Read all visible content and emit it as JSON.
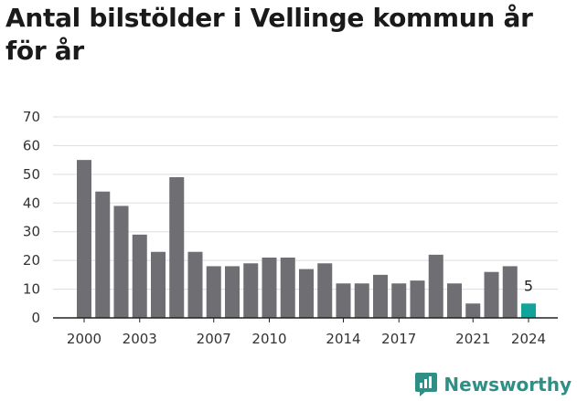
{
  "page": {
    "title": "Antal bilstölder i Vellinge kommun år för år",
    "brand": "Newsworthy"
  },
  "colors": {
    "bar": "#6e6e73",
    "highlight": "#12a49a",
    "grid": "#dddddd",
    "axis": "#222222",
    "brand": "#2d8f86"
  },
  "chart_data": {
    "type": "bar",
    "title": "Antal bilstölder i Vellinge kommun år för år",
    "xlabel": "",
    "ylabel": "",
    "x": [
      2000,
      2001,
      2002,
      2003,
      2004,
      2005,
      2006,
      2007,
      2008,
      2009,
      2010,
      2011,
      2012,
      2013,
      2014,
      2015,
      2016,
      2017,
      2018,
      2019,
      2020,
      2021,
      2022,
      2023,
      2024
    ],
    "values": [
      55,
      44,
      39,
      29,
      23,
      49,
      23,
      18,
      18,
      19,
      21,
      21,
      17,
      19,
      12,
      12,
      15,
      12,
      13,
      22,
      12,
      5,
      16,
      18,
      5
    ],
    "highlight_index": 24,
    "data_labels": [
      {
        "index": 24,
        "text": "5"
      }
    ],
    "ylim": [
      0,
      70
    ],
    "yticks": [
      0,
      10,
      20,
      30,
      40,
      50,
      60,
      70
    ],
    "xticks": [
      2000,
      2003,
      2007,
      2010,
      2014,
      2017,
      2021,
      2024
    ],
    "grid": true,
    "legend": "none"
  }
}
